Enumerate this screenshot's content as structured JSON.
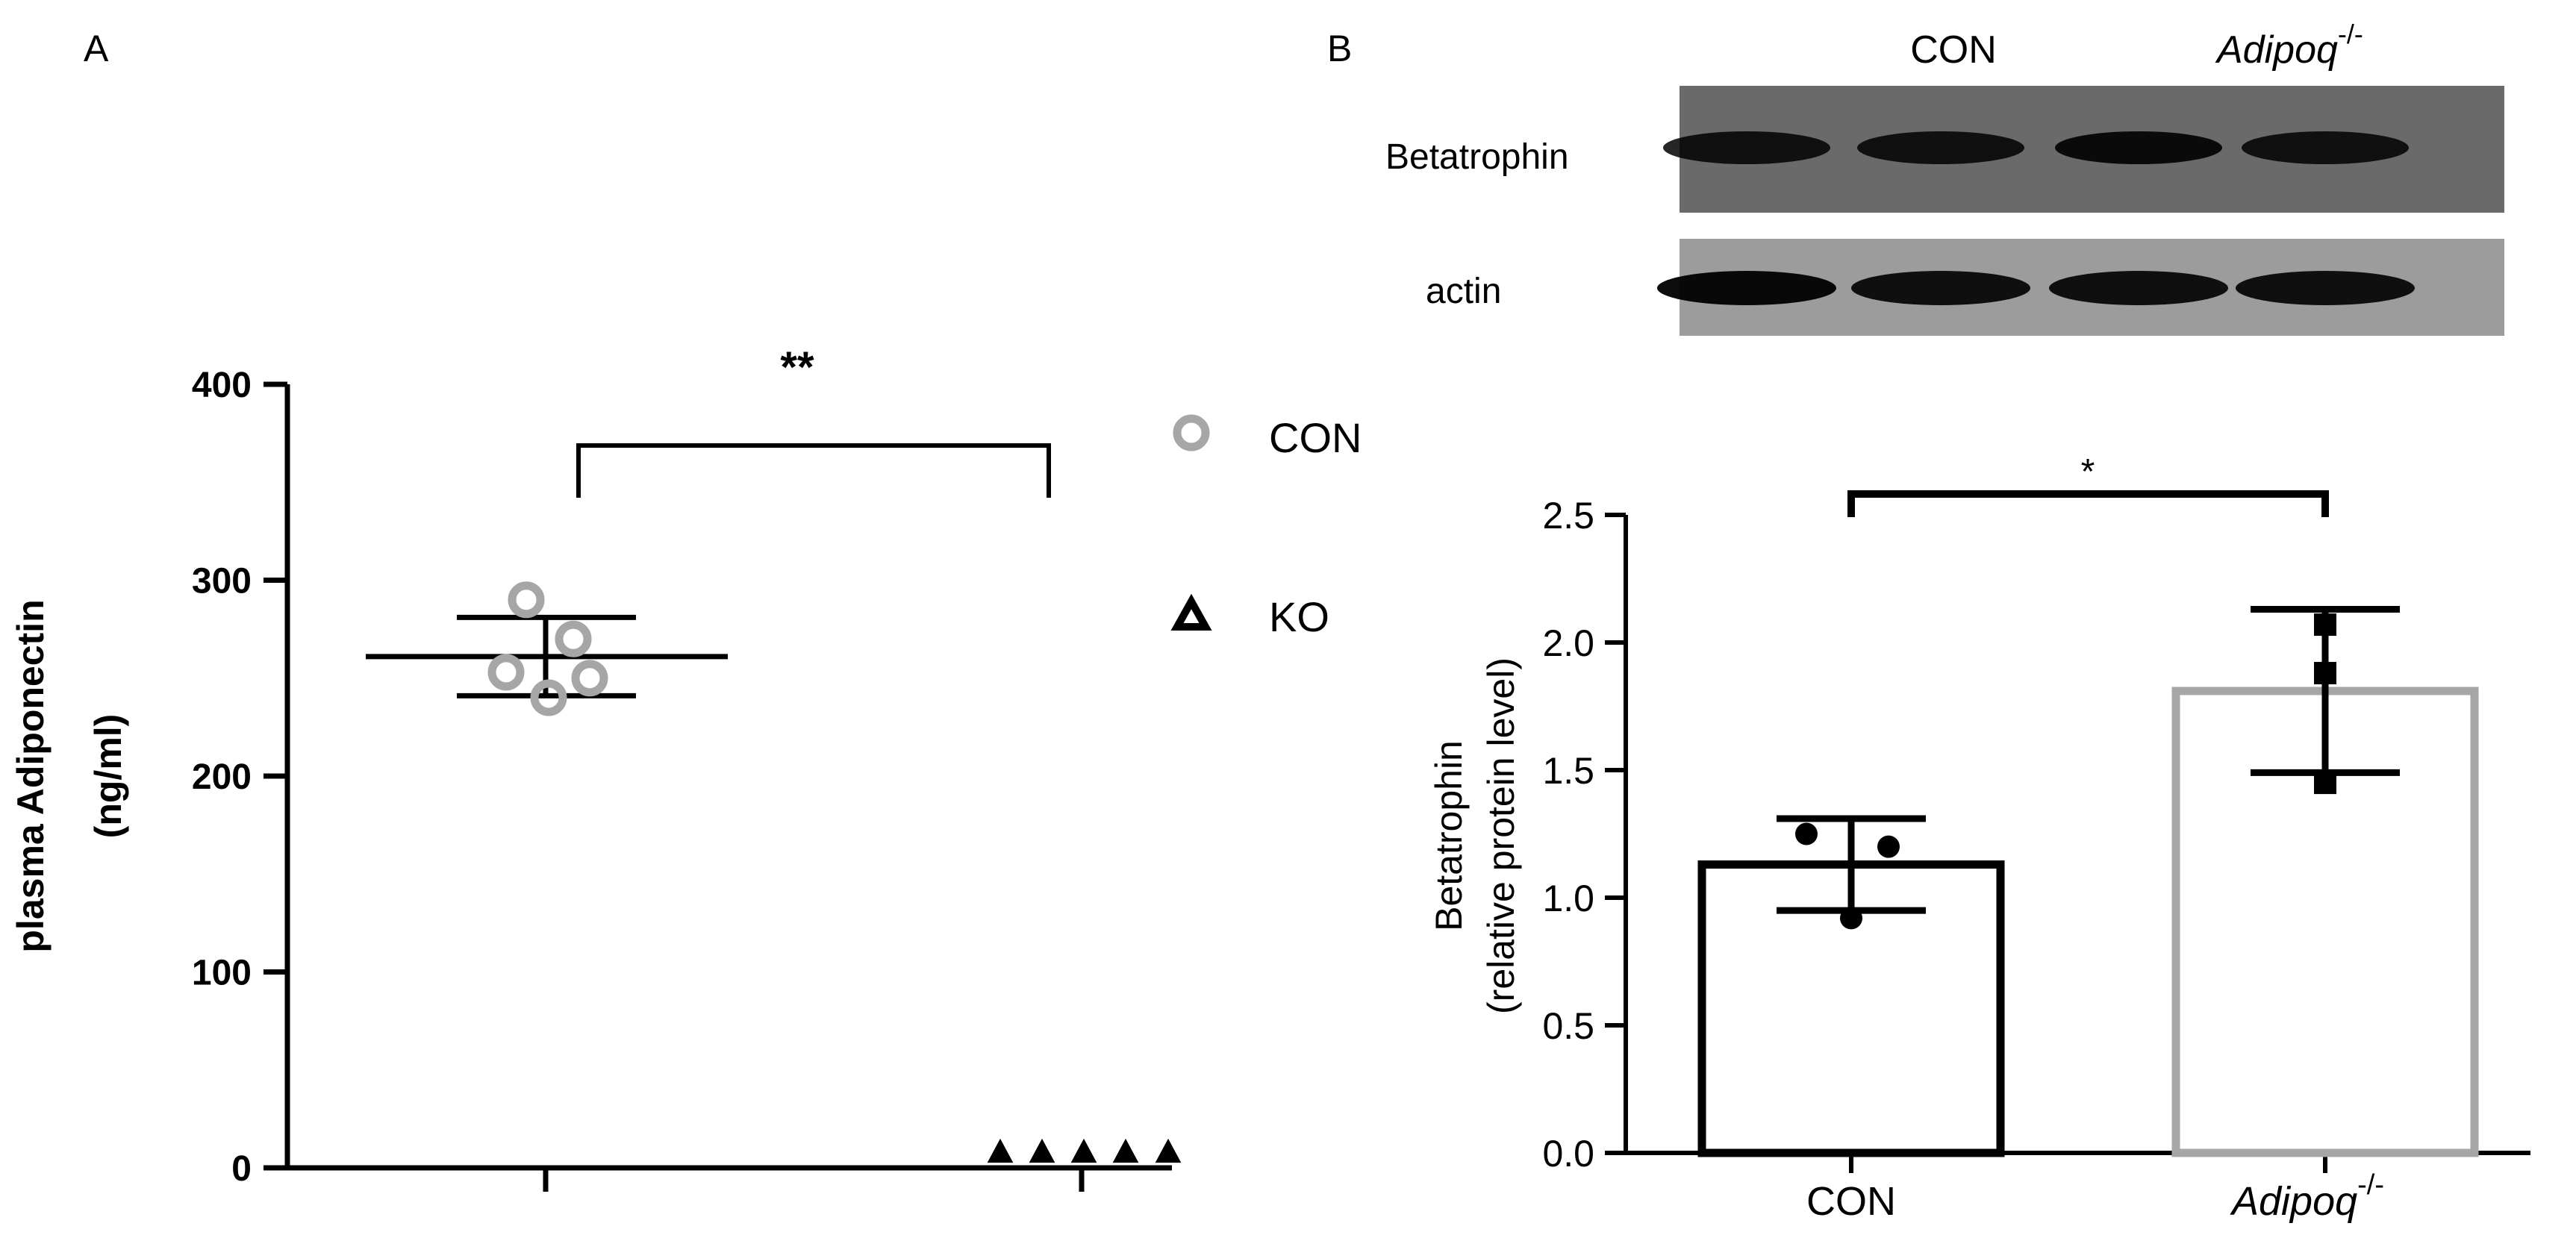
{
  "panels": {
    "a": {
      "label": "A",
      "ylabel_line1": "plasma Adiponectin",
      "ylabel_line2": "(ng/ml)",
      "significance": "**",
      "legend": [
        {
          "label": "CON",
          "marker": "open-circle",
          "color": "#a6a6a6"
        },
        {
          "label": "KO",
          "marker": "open-triangle",
          "color": "#000000"
        }
      ]
    },
    "b": {
      "label": "B",
      "blot": {
        "col_con": "CON",
        "col_ko_main": "Adipoq",
        "col_ko_sup": "-/-",
        "row1_label": "Betatrophin",
        "row2_label": "actin",
        "row1_intensity": [
          0.85,
          0.85,
          0.9,
          0.85
        ],
        "row2_intensity": [
          0.95,
          0.9,
          0.9,
          0.9
        ]
      },
      "ylabel_line1": "Betatrophin",
      "ylabel_line2": "(relative protein level)",
      "significance": "*",
      "xtick_ko_main": "Adipoq",
      "xtick_ko_sup": "-/-"
    }
  },
  "chart_data": [
    {
      "panel": "A",
      "type": "scatter",
      "ylabel": "plasma Adiponectin (ng/ml)",
      "ylim": [
        0,
        400
      ],
      "yticks": [
        0,
        100,
        200,
        300,
        400
      ],
      "series": [
        {
          "name": "CON",
          "color": "#a6a6a6",
          "values": [
            290,
            270,
            253,
            250,
            240
          ],
          "mean": 261,
          "sd": 20
        },
        {
          "name": "KO",
          "color": "#000000",
          "values": [
            3,
            3,
            3,
            3,
            3
          ]
        }
      ]
    },
    {
      "panel": "B",
      "type": "bar",
      "ylabel": "Betatrophin (relative protein level)",
      "ylim": [
        0,
        2.5
      ],
      "yticks": [
        "0.0",
        "0.5",
        "1.0",
        "1.5",
        "2.0",
        "2.5"
      ],
      "categories": [
        "CON",
        "Adipoq-/-"
      ],
      "values": [
        1.13,
        1.81
      ],
      "error": [
        0.18,
        0.32
      ],
      "bar_colors": [
        "#000000",
        "#a6a6a6"
      ],
      "points": [
        [
          1.25,
          1.2,
          0.92
        ],
        [
          2.07,
          1.88,
          1.45
        ]
      ]
    }
  ]
}
